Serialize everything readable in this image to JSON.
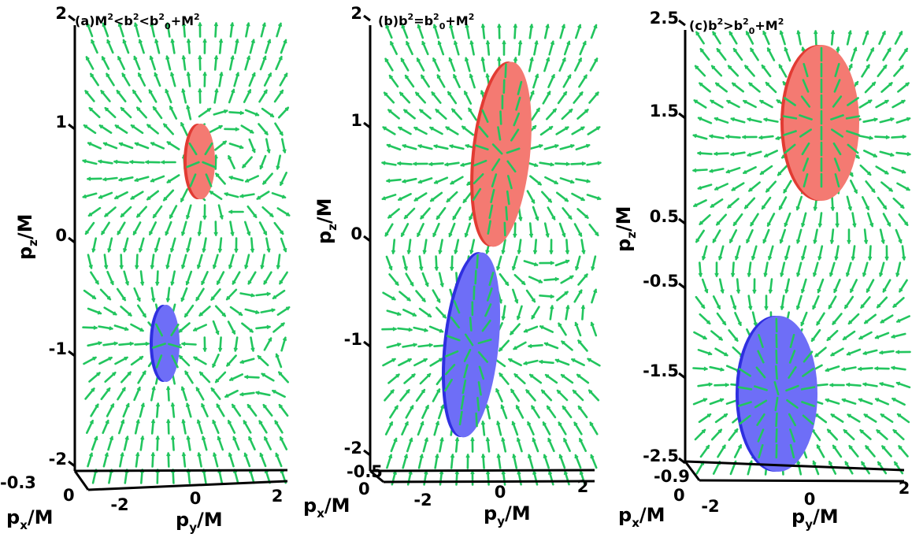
{
  "chart_data": [
    {
      "type": "vector-field-3d",
      "title": "(a)M²<b²<b₀²+M²",
      "title_parts": {
        "label": "(a)",
        "lhs": "M",
        "mid": "b",
        "rhs_b": "b",
        "rhs_sub": "0",
        "rhs_tail": "+M",
        "ops": [
          "<",
          "<"
        ]
      },
      "zlabel": {
        "main": "p",
        "sub": "z",
        "tail": "/M"
      },
      "ylabel": {
        "main": "p",
        "sub": "y",
        "tail": "/M"
      },
      "xlabel": {
        "main": "p",
        "sub": "x",
        "tail": "/M"
      },
      "z_ticks": [
        "2",
        "1",
        "0",
        "-1",
        "-2"
      ],
      "y_ticks": [
        "-2",
        "0",
        "2"
      ],
      "x_ticks": [
        "-0.3",
        "0"
      ],
      "zlim": [
        -2,
        2
      ],
      "ylim": [
        -2.5,
        2.5
      ],
      "arrow_color": "#22c55e",
      "surfaces": [
        {
          "name": "",
          "color": "#f47a72",
          "center_pz": 0.7,
          "extent_pz": 0.6
        },
        {
          "name": "",
          "color": "#6e6ef7",
          "center_pz": -0.9,
          "extent_pz": 0.6
        }
      ]
    },
    {
      "type": "vector-field-3d",
      "title": "(b)b²=b₀²+M²",
      "title_parts": {
        "label": "(b)",
        "lhs": "b",
        "ops": [
          "="
        ],
        "rhs_b": "b",
        "rhs_sub": "0",
        "rhs_tail": "+M"
      },
      "zlabel": {
        "main": "p",
        "sub": "z",
        "tail": "/M"
      },
      "ylabel": {
        "main": "p",
        "sub": "y",
        "tail": "/M"
      },
      "xlabel": {
        "main": "p",
        "sub": "x",
        "tail": "/M"
      },
      "z_ticks": [
        "2",
        "1",
        "0",
        "-1",
        "-2"
      ],
      "y_ticks": [
        "-2",
        "0",
        "2"
      ],
      "x_ticks": [
        "-0.5",
        "0"
      ],
      "zlim": [
        -2,
        2
      ],
      "ylim": [
        -2.5,
        2.5
      ],
      "arrow_color": "#22c55e",
      "surfaces": [
        {
          "name": "",
          "color": "#f47a72",
          "center_pz": 1.0,
          "extent_pz": 1.6
        },
        {
          "name": "",
          "color": "#6e6ef7",
          "center_pz": -1.0,
          "extent_pz": 1.6
        }
      ]
    },
    {
      "type": "vector-field-3d",
      "title": "(c)b²>b₀²+M²",
      "title_parts": {
        "label": "(c)",
        "lhs": "b",
        "ops": [
          ">"
        ],
        "rhs_b": "b",
        "rhs_sub": "0",
        "rhs_tail": "+M"
      },
      "zlabel": {
        "main": "p",
        "sub": "z",
        "tail": "/M"
      },
      "ylabel": {
        "main": "p",
        "sub": "y",
        "tail": "/M"
      },
      "xlabel": {
        "main": "p",
        "sub": "x",
        "tail": "/M"
      },
      "z_ticks": [
        "2.5",
        "1.5",
        "0.5",
        "-0.5",
        "-1.5",
        "-2.5"
      ],
      "y_ticks": [
        "-2",
        "0",
        "2"
      ],
      "x_ticks": [
        "-0.9",
        "0"
      ],
      "zlim": [
        -2.5,
        2.5
      ],
      "ylim": [
        -2.5,
        2.5
      ],
      "arrow_color": "#22c55e",
      "surfaces": [
        {
          "name": "",
          "color": "#f47a72",
          "center_pz": 1.4,
          "extent_pz": 1.4
        },
        {
          "name": "",
          "color": "#6e6ef7",
          "center_pz": -1.8,
          "extent_pz": 1.4
        }
      ]
    }
  ]
}
